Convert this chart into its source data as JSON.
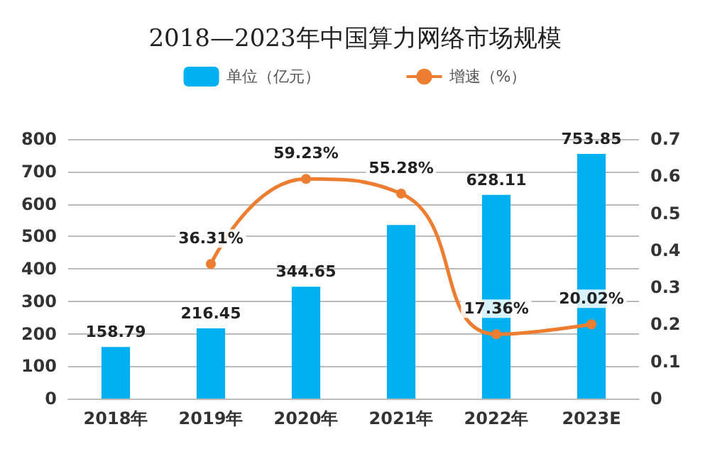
{
  "chart_data": {
    "type": "bar",
    "title": "2018—2023年中国算力网络市场规模",
    "categories": [
      "2018年",
      "2019年",
      "2020年",
      "2021年",
      "2022年",
      "2023E"
    ],
    "series": [
      {
        "name": "单位（亿元）",
        "color": "#00b0f0",
        "values": [
          158.79,
          216.45,
          344.65,
          535,
          628.11,
          753.85
        ],
        "value_labels": [
          "158.79",
          "216.45",
          "344.65",
          null,
          "628.11",
          "753.85"
        ]
      },
      {
        "name": "增速（%）",
        "type": "line",
        "axis": "y2",
        "color": "#ed7d31",
        "marker": "circle",
        "values": [
          null,
          0.3631,
          0.5923,
          0.5528,
          0.1736,
          0.2002
        ],
        "value_labels": [
          null,
          "36.31%",
          "59.23%",
          "55.28%",
          "17.36%",
          "20.02%"
        ]
      }
    ],
    "ylim": [
      0,
      800
    ],
    "yticks": [
      0,
      100,
      200,
      300,
      400,
      500,
      600,
      700,
      800
    ],
    "y2lim": [
      0,
      0.7
    ],
    "y2ticks": [
      0,
      0.1,
      0.2,
      0.3,
      0.4,
      0.5,
      0.6,
      0.7
    ],
    "grid": "y",
    "legend": "top"
  }
}
